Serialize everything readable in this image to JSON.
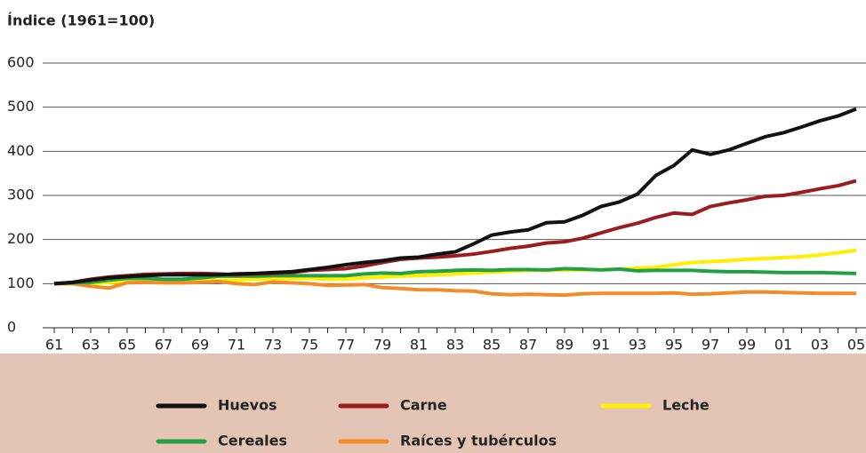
{
  "chart_data": {
    "type": "line",
    "y_label": "Índice (1961=100)",
    "categories": [
      "61",
      null,
      "63",
      null,
      "65",
      null,
      "67",
      null,
      "69",
      null,
      "71",
      null,
      "73",
      null,
      "75",
      null,
      "77",
      null,
      "79",
      null,
      "81",
      null,
      "83",
      null,
      "85",
      null,
      "87",
      null,
      "89",
      null,
      "91",
      null,
      "93",
      null,
      "95",
      null,
      "97",
      null,
      "99",
      null,
      "01",
      null,
      "03",
      null,
      "05"
    ],
    "ylim": [
      0,
      600
    ],
    "yticks": [
      0,
      100,
      200,
      300,
      400,
      500,
      600
    ],
    "grid": true,
    "series": [
      {
        "name": "Huevos",
        "color": "#111111",
        "values": [
          100,
          103,
          108,
          113,
          116,
          118,
          120,
          120,
          120,
          120,
          122,
          123,
          125,
          127,
          132,
          137,
          143,
          148,
          152,
          158,
          160,
          167,
          172,
          190,
          210,
          217,
          222,
          238,
          240,
          255,
          275,
          285,
          303,
          345,
          368,
          403,
          393,
          403,
          418,
          433,
          442,
          455,
          469,
          480,
          496
        ]
      },
      {
        "name": "Carne",
        "color": "#9b1c1f",
        "values": [
          100,
          103,
          110,
          115,
          118,
          121,
          122,
          123,
          123,
          122,
          120,
          122,
          123,
          125,
          130,
          132,
          134,
          140,
          148,
          155,
          158,
          160,
          163,
          167,
          173,
          180,
          185,
          192,
          195,
          203,
          215,
          227,
          237,
          250,
          260,
          257,
          275,
          283,
          290,
          298,
          300,
          307,
          315,
          322,
          333
        ]
      },
      {
        "name": "Leche",
        "color": "#ffee00",
        "values": [
          100,
          100,
          100,
          103,
          105,
          106,
          106,
          106,
          107,
          108,
          108,
          110,
          112,
          112,
          112,
          110,
          110,
          113,
          115,
          117,
          118,
          120,
          122,
          124,
          126,
          128,
          130,
          130,
          131,
          131,
          132,
          133,
          135,
          137,
          143,
          148,
          150,
          152,
          155,
          157,
          159,
          161,
          165,
          170,
          176
        ]
      },
      {
        "name": "Cereales",
        "color": "#23a046",
        "values": [
          100,
          102,
          103,
          108,
          112,
          112,
          110,
          110,
          113,
          117,
          117,
          117,
          118,
          118,
          118,
          118,
          118,
          122,
          124,
          123,
          127,
          128,
          130,
          131,
          130,
          132,
          132,
          131,
          134,
          133,
          131,
          133,
          129,
          130,
          130,
          130,
          128,
          127,
          127,
          126,
          125,
          125,
          125,
          124,
          123
        ]
      },
      {
        "name": "Raíces y tubérculos",
        "color": "#f28c28",
        "values": [
          100,
          100,
          94,
          90,
          102,
          103,
          102,
          102,
          103,
          105,
          100,
          98,
          104,
          102,
          100,
          96,
          97,
          98,
          91,
          89,
          86,
          86,
          84,
          83,
          77,
          75,
          76,
          75,
          74,
          77,
          78,
          78,
          78,
          78,
          79,
          76,
          77,
          79,
          81,
          81,
          80,
          79,
          78,
          78,
          78
        ]
      }
    ]
  }
}
